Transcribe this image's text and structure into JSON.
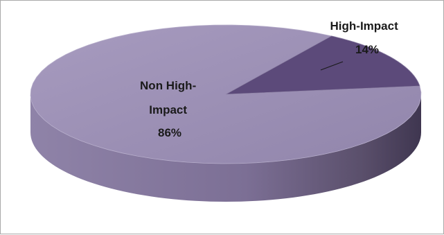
{
  "chart_data": {
    "type": "pie",
    "style": "3d",
    "title": "",
    "slices": [
      {
        "label_lines": [
          "Non High-",
          "Impact",
          "86%"
        ],
        "name": "Non High-Impact",
        "value": 86,
        "color": "#9a8fb3"
      },
      {
        "label_lines": [
          "High-Impact",
          "14%"
        ],
        "name": "High-Impact",
        "value": 14,
        "color": "#5c4a7a"
      }
    ],
    "legend": "none",
    "data_labels": "on-slice with leader line"
  }
}
